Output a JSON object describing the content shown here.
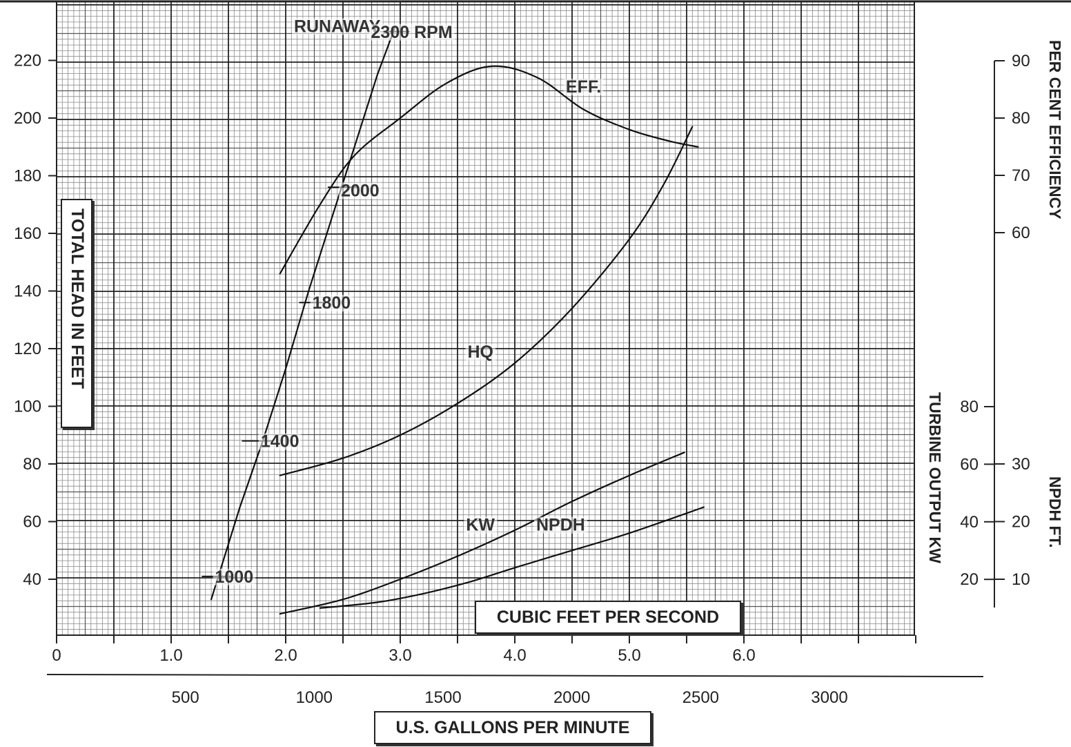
{
  "chart_data": {
    "type": "line",
    "x_axis": {
      "label": "CUBIC FEET PER SECOND",
      "range": [
        0,
        7.5
      ],
      "ticks": [
        "0",
        "1.0",
        "2.0",
        "3.0",
        "4.0",
        "5.0",
        "6.0"
      ]
    },
    "x_axis_secondary": {
      "label": "U.S. GALLONS PER MINUTE",
      "ticks": [
        "500",
        "1000",
        "1500",
        "2000",
        "2500",
        "3000"
      ]
    },
    "y_axis_left": {
      "label": "TOTAL HEAD IN FEET",
      "range": [
        20,
        230
      ],
      "ticks": [
        "40",
        "60",
        "80",
        "100",
        "120",
        "140",
        "160",
        "180",
        "200",
        "220"
      ]
    },
    "y_axis_right_efficiency": {
      "label": "PER CENT EFFICIENCY",
      "ticks": [
        "60",
        "70",
        "80",
        "90"
      ]
    },
    "y_axis_right_kw": {
      "label": "TURBINE OUTPUT KW",
      "ticks": [
        "20",
        "40",
        "60",
        "80"
      ]
    },
    "y_axis_right_npdh": {
      "label": "NPDH FT.",
      "ticks": [
        "10",
        "20",
        "30"
      ]
    },
    "grid": true,
    "series": [
      {
        "name": "HQ",
        "x": [
          1.95,
          2.5,
          3.0,
          3.5,
          4.0,
          4.5,
          5.0,
          5.3,
          5.55
        ],
        "y": [
          76,
          82,
          90,
          101,
          115,
          134,
          158,
          177,
          197
        ]
      },
      {
        "name": "EFF.",
        "x": [
          1.95,
          2.3,
          2.6,
          3.0,
          3.4,
          3.8,
          4.2,
          4.6,
          5.0,
          5.35,
          5.6
        ],
        "y": [
          146,
          170,
          187,
          200,
          212,
          218,
          214,
          203,
          196,
          192,
          190
        ]
      },
      {
        "name": "KW",
        "x": [
          1.95,
          2.5,
          3.0,
          3.5,
          4.0,
          4.5,
          5.0,
          5.48
        ],
        "y": [
          28,
          33,
          40,
          48,
          57,
          67,
          76,
          84
        ]
      },
      {
        "name": "NPDH",
        "x": [
          2.3,
          2.8,
          3.2,
          3.6,
          4.0,
          4.5,
          5.0,
          5.65
        ],
        "y": [
          30,
          32,
          35,
          39,
          44,
          50,
          56,
          65
        ]
      },
      {
        "name": "RUNAWAY",
        "x": [
          1.35,
          1.6,
          1.8,
          2.0,
          2.2,
          2.4,
          2.6,
          2.8,
          2.95
        ],
        "y": [
          33,
          65,
          88,
          113,
          140,
          165,
          190,
          215,
          231
        ]
      }
    ],
    "annotations": [
      {
        "text": "RUNAWAY",
        "x": 2.45,
        "y": 232
      },
      {
        "text": "2300 RPM",
        "x": 3.1,
        "y": 230
      },
      {
        "text": "2000",
        "x": 2.65,
        "y": 175
      },
      {
        "text": "1800",
        "x": 2.4,
        "y": 136
      },
      {
        "text": "1400",
        "x": 1.95,
        "y": 88
      },
      {
        "text": "1000",
        "x": 1.55,
        "y": 41
      },
      {
        "text": "HQ",
        "x": 3.7,
        "y": 119
      },
      {
        "text": "EFF.",
        "x": 4.6,
        "y": 211
      },
      {
        "text": "KW",
        "x": 3.7,
        "y": 59
      },
      {
        "text": "NPDH",
        "x": 4.4,
        "y": 59
      }
    ]
  }
}
